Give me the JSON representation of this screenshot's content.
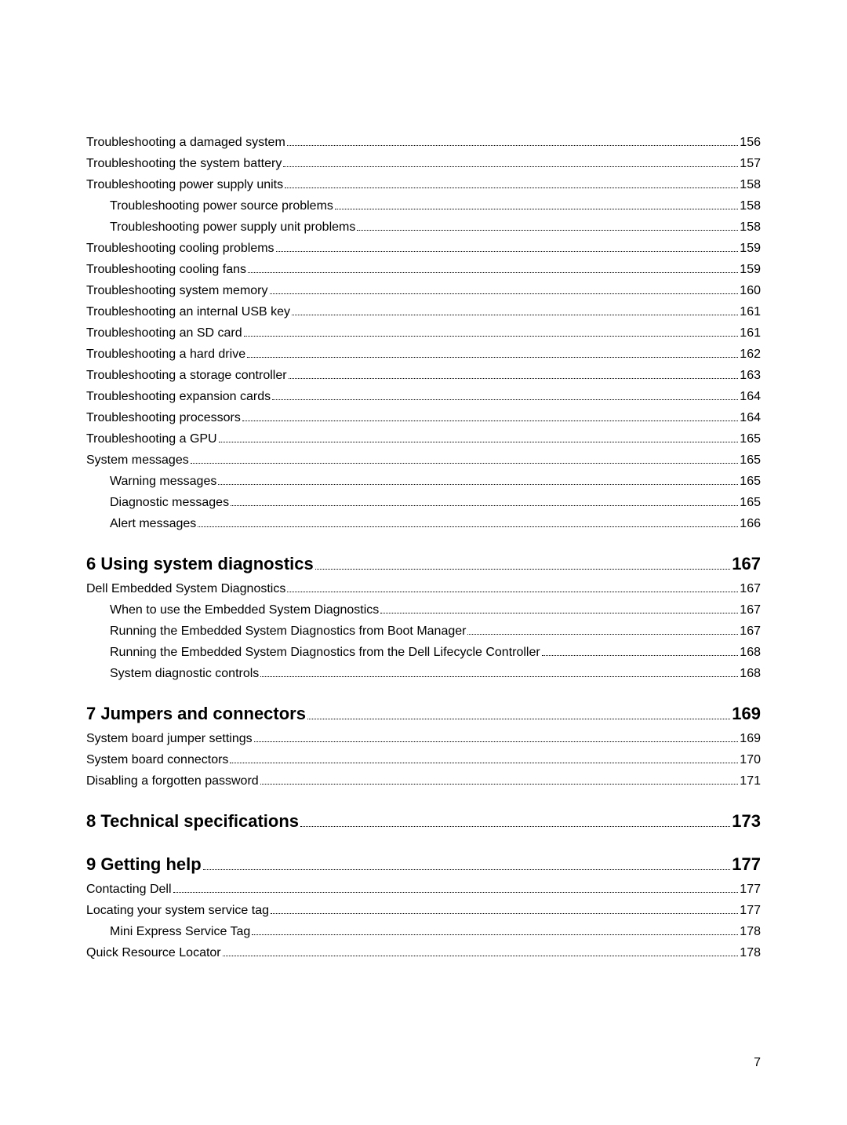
{
  "pageNumber": "7",
  "entries": [
    {
      "title": "Troubleshooting a damaged system",
      "page": "156",
      "level": 1,
      "chapter": false
    },
    {
      "title": "Troubleshooting the system battery",
      "page": "157",
      "level": 1,
      "chapter": false
    },
    {
      "title": "Troubleshooting power supply units",
      "page": "158",
      "level": 1,
      "chapter": false
    },
    {
      "title": "Troubleshooting power source problems",
      "page": "158",
      "level": 2,
      "chapter": false
    },
    {
      "title": "Troubleshooting power supply unit problems",
      "page": "158",
      "level": 2,
      "chapter": false
    },
    {
      "title": "Troubleshooting cooling problems",
      "page": "159",
      "level": 1,
      "chapter": false
    },
    {
      "title": "Troubleshooting cooling fans",
      "page": "159",
      "level": 1,
      "chapter": false
    },
    {
      "title": "Troubleshooting system memory",
      "page": "160",
      "level": 1,
      "chapter": false
    },
    {
      "title": "Troubleshooting an internal USB key",
      "page": "161",
      "level": 1,
      "chapter": false
    },
    {
      "title": "Troubleshooting an SD card",
      "page": "161",
      "level": 1,
      "chapter": false
    },
    {
      "title": "Troubleshooting a hard drive",
      "page": "162",
      "level": 1,
      "chapter": false
    },
    {
      "title": "Troubleshooting a storage controller",
      "page": "163",
      "level": 1,
      "chapter": false
    },
    {
      "title": "Troubleshooting expansion cards",
      "page": "164",
      "level": 1,
      "chapter": false
    },
    {
      "title": "Troubleshooting processors",
      "page": "164",
      "level": 1,
      "chapter": false
    },
    {
      "title": "Troubleshooting a GPU",
      "page": "165",
      "level": 1,
      "chapter": false
    },
    {
      "title": "System messages",
      "page": "165",
      "level": 1,
      "chapter": false
    },
    {
      "title": "Warning messages",
      "page": "165",
      "level": 2,
      "chapter": false
    },
    {
      "title": "Diagnostic messages",
      "page": "165",
      "level": 2,
      "chapter": false
    },
    {
      "title": "Alert messages",
      "page": "166",
      "level": 2,
      "chapter": false
    },
    {
      "title": "6 Using system diagnostics",
      "page": "167",
      "level": 0,
      "chapter": true
    },
    {
      "title": "Dell Embedded System Diagnostics",
      "page": "167",
      "level": 1,
      "chapter": false
    },
    {
      "title": "When to use the Embedded System Diagnostics",
      "page": "167",
      "level": 2,
      "chapter": false
    },
    {
      "title": "Running the Embedded System Diagnostics from Boot Manager",
      "page": "167",
      "level": 2,
      "chapter": false
    },
    {
      "title": "Running the Embedded System Diagnostics from the Dell Lifecycle Controller",
      "page": "168",
      "level": 2,
      "chapter": false
    },
    {
      "title": "System diagnostic controls",
      "page": "168",
      "level": 2,
      "chapter": false
    },
    {
      "title": "7 Jumpers and connectors",
      "page": "169",
      "level": 0,
      "chapter": true
    },
    {
      "title": "System board jumper settings",
      "page": "169",
      "level": 1,
      "chapter": false
    },
    {
      "title": "System board connectors",
      "page": "170",
      "level": 1,
      "chapter": false
    },
    {
      "title": "Disabling a forgotten password",
      "page": "171",
      "level": 1,
      "chapter": false
    },
    {
      "title": "8 Technical specifications",
      "page": "173",
      "level": 0,
      "chapter": true
    },
    {
      "title": "9 Getting help",
      "page": "177",
      "level": 0,
      "chapter": true
    },
    {
      "title": "Contacting Dell",
      "page": "177",
      "level": 1,
      "chapter": false
    },
    {
      "title": "Locating your system service tag",
      "page": "177",
      "level": 1,
      "chapter": false
    },
    {
      "title": "Mini Express Service Tag",
      "page": "178",
      "level": 2,
      "chapter": false
    },
    {
      "title": "Quick Resource Locator ",
      "page": "178",
      "level": 1,
      "chapter": false
    }
  ]
}
